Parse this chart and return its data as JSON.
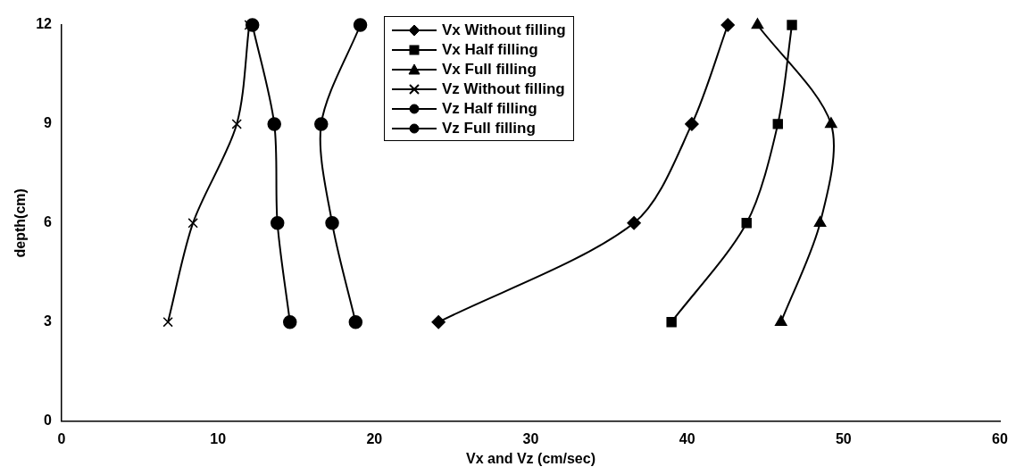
{
  "chart_data": {
    "type": "line",
    "xlabel": "Vx and Vz (cm/sec)",
    "ylabel": "depth(cm)",
    "xlim": [
      0,
      60
    ],
    "xticks": [
      0,
      10,
      20,
      30,
      40,
      50,
      60
    ],
    "ylim": [
      0,
      12
    ],
    "yticks": [
      0,
      3,
      6,
      9,
      12
    ],
    "grid": false,
    "legend": "top",
    "line_style": "solid",
    "series": [
      {
        "name": "Vx Without filling",
        "color": "#000000",
        "marker": "diamond",
        "x": [
          24.1,
          36.6,
          40.3,
          42.6
        ],
        "values": [
          3,
          6,
          9,
          12
        ]
      },
      {
        "name": "Vx Half filling",
        "color": "#000000",
        "marker": "square",
        "x": [
          39.0,
          43.8,
          45.8,
          46.7
        ],
        "values": [
          3,
          6,
          9,
          12
        ]
      },
      {
        "name": "Vx Full filling",
        "color": "#000000",
        "marker": "triangle",
        "x": [
          46.0,
          48.5,
          49.2,
          44.5
        ],
        "values": [
          3,
          6,
          9,
          12
        ]
      },
      {
        "name": "Vz Without filling",
        "color": "#000000",
        "marker": "cross",
        "x": [
          6.8,
          8.4,
          11.2,
          12.0
        ],
        "values": [
          3,
          6,
          9,
          12
        ]
      },
      {
        "name": "Vz Half filling",
        "color": "#000000",
        "marker": "circle",
        "x": [
          14.6,
          13.8,
          13.6,
          12.2
        ],
        "values": [
          3,
          6,
          9,
          12
        ]
      },
      {
        "name": "Vz Full filling",
        "color": "#000000",
        "marker": "circle",
        "x": [
          18.8,
          17.3,
          16.6,
          19.1
        ],
        "values": [
          3,
          6,
          9,
          12
        ]
      }
    ]
  }
}
